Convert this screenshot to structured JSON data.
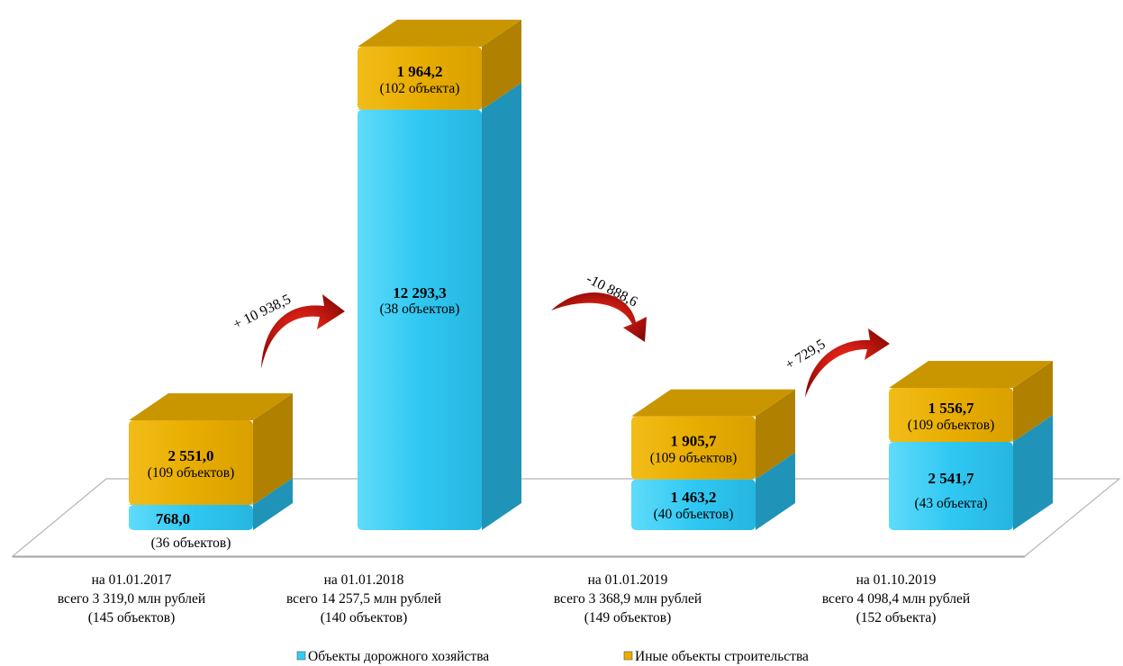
{
  "chart_data": {
    "type": "bar",
    "stacked": true,
    "categories": [
      {
        "date": "на 01.01.2017",
        "total": "всего 3 319,0 млн рублей",
        "count": "(145 объектов)"
      },
      {
        "date": "на 01.01.2018",
        "total": "всего 14 257,5 млн рублей",
        "count": "(140 объектов)"
      },
      {
        "date": "на 01.01.2019",
        "total": "всего 3 368,9 млн рублей",
        "count": "(149 объектов)"
      },
      {
        "date": "на 01.10.2019",
        "total": "всего 4 098,4 млн рублей",
        "count": "(152 объекта)"
      }
    ],
    "series": [
      {
        "name": "Объекты дорожного хозяйства",
        "color": "#33CCF5",
        "values": [
          768.0,
          12293.3,
          1463.2,
          2541.7
        ],
        "value_labels": [
          "768,0",
          "12 293,3",
          "1 463,2",
          "2 541,7"
        ],
        "count_labels": [
          "(36 объектов)",
          "(38 объектов)",
          "(40 объектов)",
          "(43 объекта)"
        ]
      },
      {
        "name": "Иные объекты строительства",
        "color": "#E9AE00",
        "values": [
          2551.0,
          1964.2,
          1905.7,
          1556.7
        ],
        "value_labels": [
          "2 551,0",
          "1 964,2",
          "1 905,7",
          "1 556,7"
        ],
        "count_labels": [
          "(109 объектов)",
          "(102 объекта)",
          "(109 объектов)",
          "(109 объектов)"
        ]
      }
    ],
    "changes": [
      {
        "label": "+ 10 938,5",
        "direction": "up"
      },
      {
        "label": "-10 888,6",
        "direction": "down"
      },
      {
        "label": "+ 729,5",
        "direction": "up"
      }
    ],
    "legend_position": "bottom",
    "grid": false
  }
}
